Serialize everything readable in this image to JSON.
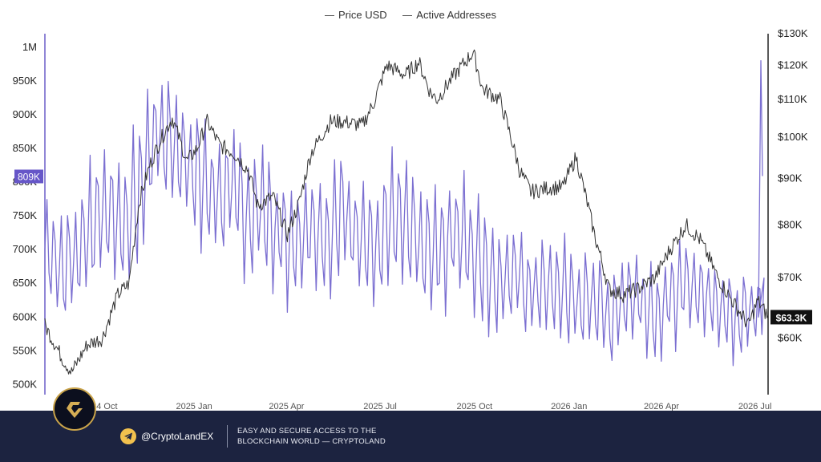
{
  "legend": {
    "items": [
      "Price USD",
      "Active Addresses"
    ]
  },
  "colors": {
    "price": "#333333",
    "addresses": "#7b6fd1",
    "badge_left": "#6656c8",
    "badge_right": "#111111",
    "footer": "#1c2340"
  },
  "chart_data": {
    "type": "line",
    "x_ticks": [
      "2024 Oct",
      "2025 Jan",
      "2025 Apr",
      "2025 Jul",
      "2025 Oct",
      "2026 Jan",
      "2026 Apr",
      "2026 Jul"
    ],
    "y_left": {
      "ticks": [
        "1M",
        "950K",
        "900K",
        "850K",
        "800K",
        "750K",
        "700K",
        "650K",
        "600K",
        "550K",
        "500K"
      ],
      "range": [
        485000,
        1020000
      ]
    },
    "y_right": {
      "ticks": [
        "$130K",
        "$120K",
        "$110K",
        "$100K",
        "$90K",
        "$80K",
        "$70K",
        "$60K"
      ],
      "range": [
        52000,
        130000
      ],
      "scale": "log"
    },
    "series": [
      {
        "name": "Price USD",
        "axis": "right",
        "x": [
          "2024-08-15",
          "2024-09-01",
          "2024-09-10",
          "2024-09-25",
          "2024-10-10",
          "2024-10-25",
          "2024-11-05",
          "2024-11-15",
          "2024-11-25",
          "2024-12-05",
          "2024-12-17",
          "2024-12-31",
          "2025-01-10",
          "2025-01-20",
          "2025-02-01",
          "2025-02-15",
          "2025-03-01",
          "2025-03-10",
          "2025-03-25",
          "2025-04-08",
          "2025-04-20",
          "2025-05-01",
          "2025-05-20",
          "2025-06-01",
          "2025-06-20",
          "2025-07-01",
          "2025-07-14",
          "2025-08-01",
          "2025-08-14",
          "2025-08-25",
          "2025-09-01",
          "2025-09-15",
          "2025-10-06",
          "2025-10-15",
          "2025-11-01",
          "2025-11-20",
          "2025-12-01",
          "2025-12-20",
          "2026-01-01",
          "2026-01-14",
          "2026-02-01",
          "2026-02-15",
          "2026-03-01",
          "2026-03-15",
          "2026-04-01",
          "2026-04-15",
          "2026-05-01",
          "2026-05-15",
          "2026-06-01",
          "2026-06-15",
          "2026-07-01",
          "2026-07-10",
          "2026-07-20"
        ],
        "values": [
          62000,
          57000,
          55000,
          59000,
          60000,
          67000,
          69000,
          85000,
          93000,
          99000,
          105000,
          94000,
          97000,
          104000,
          98000,
          96000,
          92000,
          84000,
          86000,
          78000,
          85000,
          96000,
          104000,
          104000,
          103000,
          109000,
          120000,
          117000,
          121000,
          112000,
          110000,
          116000,
          124000,
          113000,
          110000,
          92000,
          87000,
          88000,
          88000,
          95000,
          78000,
          68000,
          67000,
          68000,
          70000,
          75000,
          80000,
          77000,
          70000,
          66000,
          62000,
          66000,
          63300
        ]
      },
      {
        "name": "Active Addresses",
        "axis": "left",
        "x": [
          "2024-08-15",
          "2024-09-01",
          "2024-09-15",
          "2024-10-01",
          "2024-10-15",
          "2024-11-01",
          "2024-11-15",
          "2024-12-01",
          "2024-12-15",
          "2025-01-01",
          "2025-01-15",
          "2025-02-01",
          "2025-02-15",
          "2025-03-01",
          "2025-03-15",
          "2025-04-01",
          "2025-04-15",
          "2025-05-01",
          "2025-05-15",
          "2025-06-01",
          "2025-06-15",
          "2025-07-01",
          "2025-07-15",
          "2025-08-01",
          "2025-08-15",
          "2025-09-01",
          "2025-09-15",
          "2025-10-01",
          "2025-10-15",
          "2025-11-01",
          "2025-11-15",
          "2025-12-01",
          "2025-12-15",
          "2026-01-01",
          "2026-01-15",
          "2026-02-01",
          "2026-02-15",
          "2026-03-01",
          "2026-03-15",
          "2026-04-01",
          "2026-04-15",
          "2026-05-01",
          "2026-05-15",
          "2026-06-01",
          "2026-06-15",
          "2026-07-01",
          "2026-07-15",
          "2026-07-20"
        ],
        "values": [
          700000,
          660000,
          690000,
          730000,
          760000,
          720000,
          790000,
          870000,
          860000,
          830000,
          800000,
          780000,
          790000,
          740000,
          760000,
          720000,
          700000,
          740000,
          710000,
          760000,
          720000,
          700000,
          740000,
          750000,
          700000,
          690000,
          730000,
          700000,
          680000,
          650000,
          670000,
          640000,
          650000,
          640000,
          620000,
          630000,
          600000,
          620000,
          630000,
          600000,
          630000,
          650000,
          640000,
          620000,
          600000,
          610000,
          620000,
          809000
        ],
        "amplitude": [
          90000,
          100000,
          100000,
          110000,
          110000,
          110000,
          120000,
          100000,
          100000,
          100000,
          100000,
          100000,
          100000,
          100000,
          100000,
          100000,
          100000,
          100000,
          100000,
          100000,
          100000,
          100000,
          100000,
          100000,
          100000,
          100000,
          100000,
          100000,
          100000,
          90000,
          90000,
          80000,
          80000,
          80000,
          80000,
          80000,
          80000,
          70000,
          70000,
          70000,
          80000,
          80000,
          70000,
          70000,
          70000,
          60000,
          60000,
          60000
        ]
      }
    ],
    "current_left_label": "809K",
    "current_right_label": "$63.3K",
    "grid": false
  },
  "footer": {
    "handle": "@CryptoLandEX",
    "tagline_line1": "EASY AND SECURE ACCESS TO THE",
    "tagline_line2": "BLOCKCHAIN WORLD — CRYPTOLAND"
  }
}
